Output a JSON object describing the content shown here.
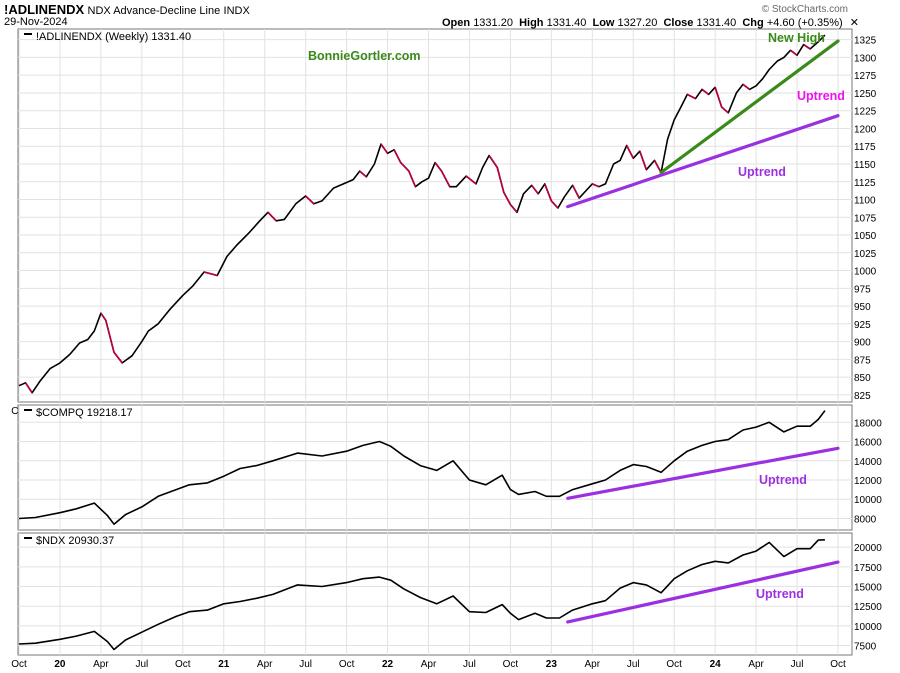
{
  "header": {
    "symbol": "!ADLINENDX",
    "description": "NDX Advance-Decline Line",
    "exchange": "INDX",
    "date": "29-Nov-2024",
    "open_label": "Open",
    "open": "1331.20",
    "high_label": "High",
    "high": "1331.40",
    "low_label": "Low",
    "low": "1327.20",
    "close_label": "Close",
    "close": "1331.40",
    "chg_label": "Chg",
    "chg": "+4.60 (+0.35%)",
    "watermark": "© StockCharts.com"
  },
  "colors": {
    "price_line": "#000000",
    "down_segments": "#c0003c",
    "uptrend_purple": "#9b30e0",
    "uptrend_magenta": "#ee10ee",
    "new_high_green": "#3a8a1a",
    "grid": "#e2e2e2",
    "credit_green": "#3a8a1a"
  },
  "chart_data": [
    {
      "type": "line",
      "panel": "top",
      "legend": "!ADLINENDX (Weekly) 1331.40",
      "credit": "BonnieGortler.com",
      "ylim": [
        815,
        1340
      ],
      "y_ticks": [
        825,
        850,
        875,
        900,
        925,
        950,
        975,
        1000,
        1025,
        1050,
        1075,
        1100,
        1125,
        1150,
        1175,
        1200,
        1225,
        1250,
        1275,
        1300,
        1325
      ],
      "x_unit": "years since Oct 2019",
      "points": [
        [
          0.0,
          838
        ],
        [
          0.04,
          842
        ],
        [
          0.08,
          828
        ],
        [
          0.13,
          845
        ],
        [
          0.19,
          862
        ],
        [
          0.25,
          870
        ],
        [
          0.31,
          882
        ],
        [
          0.37,
          898
        ],
        [
          0.42,
          903
        ],
        [
          0.46,
          915
        ],
        [
          0.5,
          940
        ],
        [
          0.53,
          930
        ],
        [
          0.58,
          885
        ],
        [
          0.63,
          870
        ],
        [
          0.69,
          880
        ],
        [
          0.75,
          900
        ],
        [
          0.79,
          915
        ],
        [
          0.85,
          925
        ],
        [
          0.92,
          945
        ],
        [
          1.0,
          965
        ],
        [
          1.06,
          978
        ],
        [
          1.13,
          998
        ],
        [
          1.21,
          993
        ],
        [
          1.27,
          1020
        ],
        [
          1.33,
          1036
        ],
        [
          1.4,
          1052
        ],
        [
          1.47,
          1070
        ],
        [
          1.52,
          1082
        ],
        [
          1.57,
          1070
        ],
        [
          1.62,
          1072
        ],
        [
          1.69,
          1094
        ],
        [
          1.75,
          1105
        ],
        [
          1.8,
          1094
        ],
        [
          1.85,
          1098
        ],
        [
          1.92,
          1116
        ],
        [
          2.0,
          1124
        ],
        [
          2.04,
          1128
        ],
        [
          2.08,
          1140
        ],
        [
          2.12,
          1132
        ],
        [
          2.17,
          1150
        ],
        [
          2.21,
          1178
        ],
        [
          2.25,
          1165
        ],
        [
          2.29,
          1170
        ],
        [
          2.33,
          1152
        ],
        [
          2.38,
          1140
        ],
        [
          2.42,
          1118
        ],
        [
          2.46,
          1125
        ],
        [
          2.5,
          1130
        ],
        [
          2.54,
          1152
        ],
        [
          2.58,
          1140
        ],
        [
          2.63,
          1118
        ],
        [
          2.67,
          1118
        ],
        [
          2.73,
          1133
        ],
        [
          2.79,
          1122
        ],
        [
          2.83,
          1145
        ],
        [
          2.87,
          1162
        ],
        [
          2.92,
          1145
        ],
        [
          2.96,
          1110
        ],
        [
          3.0,
          1093
        ],
        [
          3.04,
          1082
        ],
        [
          3.08,
          1108
        ],
        [
          3.13,
          1120
        ],
        [
          3.17,
          1108
        ],
        [
          3.21,
          1122
        ],
        [
          3.25,
          1098
        ],
        [
          3.29,
          1088
        ],
        [
          3.33,
          1104
        ],
        [
          3.38,
          1120
        ],
        [
          3.42,
          1102
        ],
        [
          3.46,
          1112
        ],
        [
          3.5,
          1122
        ],
        [
          3.54,
          1118
        ],
        [
          3.58,
          1122
        ],
        [
          3.63,
          1150
        ],
        [
          3.67,
          1155
        ],
        [
          3.71,
          1176
        ],
        [
          3.75,
          1158
        ],
        [
          3.79,
          1168
        ],
        [
          3.83,
          1142
        ],
        [
          3.88,
          1155
        ],
        [
          3.92,
          1138
        ],
        [
          3.96,
          1185
        ],
        [
          4.0,
          1212
        ],
        [
          4.04,
          1230
        ],
        [
          4.08,
          1248
        ],
        [
          4.13,
          1242
        ],
        [
          4.17,
          1255
        ],
        [
          4.21,
          1248
        ],
        [
          4.25,
          1258
        ],
        [
          4.29,
          1230
        ],
        [
          4.33,
          1222
        ],
        [
          4.38,
          1250
        ],
        [
          4.42,
          1262
        ],
        [
          4.46,
          1255
        ],
        [
          4.5,
          1260
        ],
        [
          4.54,
          1270
        ],
        [
          4.58,
          1283
        ],
        [
          4.63,
          1295
        ],
        [
          4.67,
          1300
        ],
        [
          4.71,
          1310
        ],
        [
          4.75,
          1303
        ],
        [
          4.79,
          1318
        ],
        [
          4.83,
          1312
        ],
        [
          4.88,
          1322
        ],
        [
          4.92,
          1331.4
        ]
      ],
      "annotations": [
        {
          "label": "New High",
          "color": "new_high_green"
        },
        {
          "label": "Uptrend",
          "color": "uptrend_magenta"
        },
        {
          "label": "Uptrend",
          "color": "uptrend_purple"
        }
      ],
      "trendlines": [
        {
          "color": "uptrend_purple",
          "from": [
            3.35,
            1090
          ],
          "to": [
            5.0,
            1218
          ]
        },
        {
          "color": "new_high_green",
          "from": [
            3.92,
            1138
          ],
          "to": [
            5.0,
            1323
          ]
        }
      ]
    },
    {
      "type": "line",
      "panel": "middle",
      "legend": "$COMPQ 19218.17",
      "ylim": [
        6800,
        19800
      ],
      "y_ticks": [
        8000,
        10000,
        12000,
        14000,
        16000,
        18000
      ],
      "x_unit": "years since Oct 2019",
      "points": [
        [
          0.0,
          8000
        ],
        [
          0.1,
          8100
        ],
        [
          0.25,
          8600
        ],
        [
          0.35,
          9000
        ],
        [
          0.46,
          9600
        ],
        [
          0.54,
          8300
        ],
        [
          0.58,
          7400
        ],
        [
          0.65,
          8400
        ],
        [
          0.75,
          9200
        ],
        [
          0.85,
          10300
        ],
        [
          0.96,
          11000
        ],
        [
          1.04,
          11500
        ],
        [
          1.15,
          11700
        ],
        [
          1.25,
          12400
        ],
        [
          1.35,
          13200
        ],
        [
          1.45,
          13500
        ],
        [
          1.55,
          14000
        ],
        [
          1.7,
          14800
        ],
        [
          1.85,
          14500
        ],
        [
          2.0,
          15000
        ],
        [
          2.1,
          15600
        ],
        [
          2.2,
          16000
        ],
        [
          2.27,
          15500
        ],
        [
          2.35,
          14500
        ],
        [
          2.45,
          13500
        ],
        [
          2.55,
          13000
        ],
        [
          2.65,
          14000
        ],
        [
          2.75,
          12000
        ],
        [
          2.85,
          11500
        ],
        [
          2.95,
          12500
        ],
        [
          3.0,
          11000
        ],
        [
          3.05,
          10500
        ],
        [
          3.15,
          10800
        ],
        [
          3.22,
          10300
        ],
        [
          3.3,
          10300
        ],
        [
          3.38,
          11000
        ],
        [
          3.5,
          11600
        ],
        [
          3.58,
          12000
        ],
        [
          3.67,
          13000
        ],
        [
          3.75,
          13600
        ],
        [
          3.83,
          13400
        ],
        [
          3.92,
          12800
        ],
        [
          4.0,
          14000
        ],
        [
          4.08,
          15000
        ],
        [
          4.17,
          15600
        ],
        [
          4.25,
          16000
        ],
        [
          4.33,
          16200
        ],
        [
          4.42,
          17200
        ],
        [
          4.5,
          17500
        ],
        [
          4.58,
          18000
        ],
        [
          4.67,
          17000
        ],
        [
          4.75,
          17600
        ],
        [
          4.83,
          17600
        ],
        [
          4.88,
          18300
        ],
        [
          4.92,
          19218.17
        ]
      ],
      "annotations": [
        {
          "label": "Uptrend",
          "color": "uptrend_purple"
        }
      ],
      "trendlines": [
        {
          "color": "uptrend_purple",
          "from": [
            3.35,
            10100
          ],
          "to": [
            5.0,
            15300
          ]
        }
      ]
    },
    {
      "type": "line",
      "panel": "bottom",
      "legend": "$NDX 20930.37",
      "ylim": [
        6300,
        21800
      ],
      "y_ticks": [
        7500,
        10000,
        12500,
        15000,
        17500,
        20000
      ],
      "x_unit": "years since Oct 2019",
      "points": [
        [
          0.0,
          7700
        ],
        [
          0.1,
          7800
        ],
        [
          0.25,
          8300
        ],
        [
          0.35,
          8700
        ],
        [
          0.46,
          9300
        ],
        [
          0.54,
          8000
        ],
        [
          0.58,
          7000
        ],
        [
          0.65,
          8200
        ],
        [
          0.75,
          9200
        ],
        [
          0.85,
          10200
        ],
        [
          0.96,
          11200
        ],
        [
          1.04,
          11800
        ],
        [
          1.15,
          12000
        ],
        [
          1.25,
          12800
        ],
        [
          1.35,
          13100
        ],
        [
          1.45,
          13500
        ],
        [
          1.55,
          14000
        ],
        [
          1.7,
          15200
        ],
        [
          1.85,
          15000
        ],
        [
          2.0,
          15500
        ],
        [
          2.1,
          16000
        ],
        [
          2.2,
          16200
        ],
        [
          2.27,
          15800
        ],
        [
          2.35,
          14700
        ],
        [
          2.45,
          13600
        ],
        [
          2.55,
          12800
        ],
        [
          2.65,
          13800
        ],
        [
          2.75,
          11800
        ],
        [
          2.85,
          11700
        ],
        [
          2.95,
          12700
        ],
        [
          3.0,
          11600
        ],
        [
          3.05,
          10800
        ],
        [
          3.15,
          11600
        ],
        [
          3.22,
          11000
        ],
        [
          3.3,
          11000
        ],
        [
          3.38,
          12000
        ],
        [
          3.5,
          12800
        ],
        [
          3.58,
          13200
        ],
        [
          3.67,
          14800
        ],
        [
          3.75,
          15500
        ],
        [
          3.83,
          15200
        ],
        [
          3.92,
          14200
        ],
        [
          4.0,
          16000
        ],
        [
          4.08,
          17000
        ],
        [
          4.17,
          17800
        ],
        [
          4.25,
          18200
        ],
        [
          4.33,
          18000
        ],
        [
          4.42,
          19000
        ],
        [
          4.5,
          19500
        ],
        [
          4.58,
          20600
        ],
        [
          4.67,
          18800
        ],
        [
          4.75,
          19800
        ],
        [
          4.83,
          19800
        ],
        [
          4.88,
          20900
        ],
        [
          4.92,
          20930.37
        ]
      ],
      "annotations": [
        {
          "label": "Uptrend",
          "color": "uptrend_purple"
        }
      ],
      "trendlines": [
        {
          "color": "uptrend_purple",
          "from": [
            3.35,
            10500
          ],
          "to": [
            5.0,
            18100
          ]
        }
      ]
    }
  ],
  "x_axis": {
    "labels": [
      "Oct",
      "20",
      "Apr",
      "Jul",
      "Oct",
      "21",
      "Apr",
      "Jul",
      "Oct",
      "22",
      "Apr",
      "Jul",
      "Oct",
      "23",
      "Apr",
      "Jul",
      "Oct",
      "24",
      "Apr",
      "Jul",
      "Oct"
    ],
    "positions": [
      0.0,
      0.25,
      0.5,
      0.75,
      1.0,
      1.25,
      1.5,
      1.75,
      2.0,
      2.25,
      2.5,
      2.75,
      3.0,
      3.25,
      3.5,
      3.75,
      4.0,
      4.25,
      4.5,
      4.75,
      5.0
    ],
    "bold": [
      "20",
      "21",
      "22",
      "23",
      "24"
    ]
  }
}
